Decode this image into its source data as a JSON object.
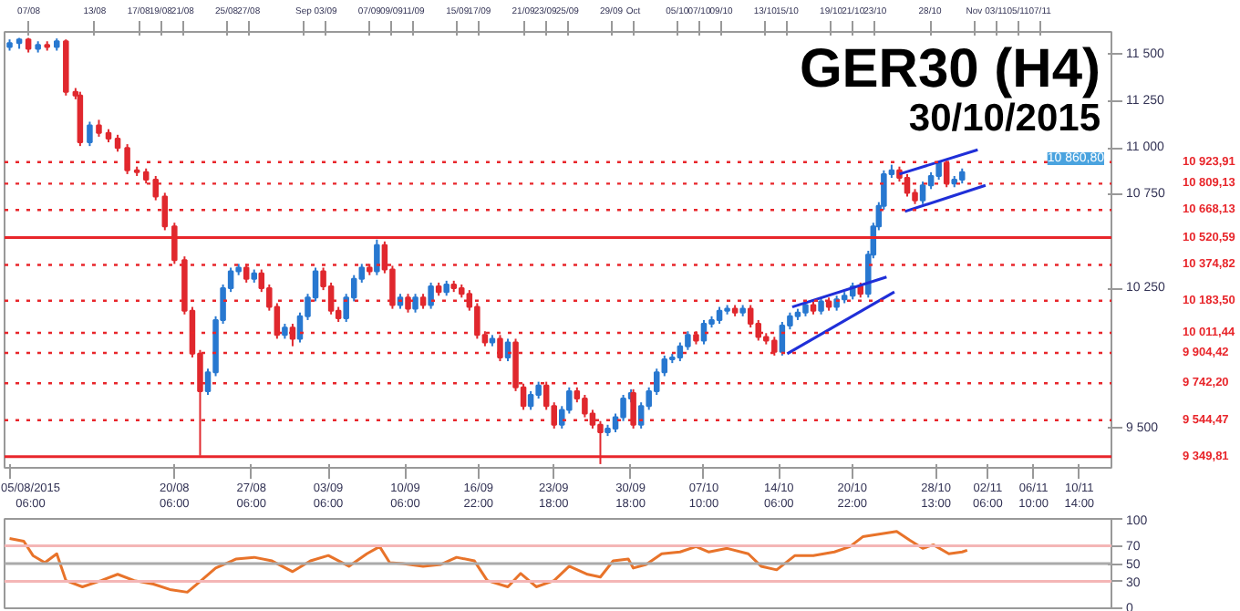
{
  "chart_data": [
    {
      "type": "candlestick",
      "title": "GER30 (H4)",
      "subtitle": "30/10/2015",
      "series": [
        {
          "type": "candlestick",
          "color": "#2878d0",
          "x": [
            "2015-08-05T06:00",
            "2015-08-06T03:00",
            "2015-08-07T20:00",
            "2015-08-09T13:00",
            "2015-08-12T13:00",
            "2015-08-23T07:00",
            "2015-08-24T00:00",
            "2015-08-24T16:00",
            "2015-08-25T09:00",
            "2015-08-26T02:00",
            "2015-08-27T12:00",
            "2015-08-30T07:00",
            "2015-08-31T16:00",
            "2015-09-01T09:00",
            "2015-09-02T02:00",
            "2015-09-04T21:00",
            "2015-09-05T14:00",
            "2015-09-06T07:00",
            "2015-09-07T16:00",
            "2015-09-09T19:00",
            "2015-09-11T04:00",
            "2015-09-12T14:00",
            "2015-09-14T00:00",
            "2015-09-18T04:00",
            "2015-09-19T14:00",
            "2015-09-21T16:00",
            "2015-09-22T09:00",
            "2015-09-24T12:00",
            "2015-09-25T04:00",
            "2015-09-28T16:00",
            "2015-09-29T09:00",
            "2015-09-30T02:00",
            "2015-09-30T19:00",
            "2015-10-01T17:00",
            "2015-10-02T10:00",
            "2015-10-03T03:00",
            "2015-10-03T20:00",
            "2015-10-04T13:00",
            "2015-10-05T06:00",
            "2015-10-05T23:00",
            "2015-10-07T10:00",
            "2015-10-08T03:00",
            "2015-10-08T20:00",
            "2015-10-09T13:00",
            "2015-10-10T23:00",
            "2015-10-14T13:00",
            "2015-10-15T06:00",
            "2015-10-15T23:00",
            "2015-10-16T16:00",
            "2015-10-18T02:00",
            "2015-10-19T12:00",
            "2015-10-20T05:00",
            "2015-10-20T23:00",
            "2015-10-22T09:00",
            "2015-10-22T20:00",
            "2015-10-23T08:00",
            "2015-10-23T19:00",
            "2015-10-24T12:00",
            "2015-10-27T08:00",
            "2015-10-28T02:00",
            "2015-10-28T19:00",
            "2015-10-30T05:00",
            "2015-10-30T22:00"
          ],
          "ohlc": [
            [
              11540,
              11580,
              11520,
              11560
            ],
            [
              11560,
              11588,
              11530,
              11580
            ],
            [
              11530,
              11570,
              11510,
              11550
            ],
            [
              11540,
              11585,
              11520,
              11570
            ],
            [
              11030,
              11140,
              11010,
              11120
            ],
            [
              9700,
              9820,
              9680,
              9800
            ],
            [
              9800,
              10100,
              9780,
              10080
            ],
            [
              10080,
              10270,
              10060,
              10250
            ],
            [
              10250,
              10360,
              10230,
              10340
            ],
            [
              10340,
              10380,
              10320,
              10360
            ],
            [
              10300,
              10350,
              10280,
              10330
            ],
            [
              10000,
              10060,
              9980,
              10040
            ],
            [
              9980,
              10120,
              9960,
              10100
            ],
            [
              10100,
              10220,
              10080,
              10200
            ],
            [
              10200,
              10360,
              10180,
              10340
            ],
            [
              10090,
              10220,
              10070,
              10200
            ],
            [
              10200,
              10320,
              10180,
              10300
            ],
            [
              10300,
              10380,
              10280,
              10360
            ],
            [
              10340,
              10510,
              10320,
              10480
            ],
            [
              10160,
              10220,
              10140,
              10200
            ],
            [
              10140,
              10220,
              10120,
              10200
            ],
            [
              10160,
              10280,
              10140,
              10260
            ],
            [
              10230,
              10290,
              10210,
              10270
            ],
            [
              9960,
              10000,
              9940,
              9980
            ],
            [
              9880,
              9980,
              9860,
              9960
            ],
            [
              9620,
              9700,
              9600,
              9680
            ],
            [
              9680,
              9750,
              9660,
              9730
            ],
            [
              9520,
              9620,
              9500,
              9600
            ],
            [
              9600,
              9720,
              9580,
              9700
            ],
            [
              9480,
              9520,
              9460,
              9500
            ],
            [
              9500,
              9580,
              9480,
              9560
            ],
            [
              9560,
              9680,
              9540,
              9660
            ],
            [
              9660,
              9710,
              9640,
              9690
            ],
            [
              9520,
              9640,
              9500,
              9620
            ],
            [
              9620,
              9720,
              9600,
              9700
            ],
            [
              9700,
              9820,
              9680,
              9800
            ],
            [
              9800,
              9890,
              9780,
              9870
            ],
            [
              9870,
              9900,
              9850,
              9880
            ],
            [
              9880,
              9960,
              9860,
              9940
            ],
            [
              9940,
              10020,
              9920,
              10000
            ],
            [
              9970,
              10080,
              9950,
              10060
            ],
            [
              10060,
              10100,
              10040,
              10080
            ],
            [
              10080,
              10150,
              10060,
              10130
            ],
            [
              10130,
              10160,
              10110,
              10140
            ],
            [
              10120,
              10160,
              10100,
              10140
            ],
            [
              9910,
              10070,
              9890,
              10050
            ],
            [
              10050,
              10120,
              10030,
              10100
            ],
            [
              10100,
              10140,
              10080,
              10120
            ],
            [
              10120,
              10180,
              10100,
              10160
            ],
            [
              10130,
              10200,
              10110,
              10180
            ],
            [
              10150,
              10210,
              10130,
              10190
            ],
            [
              10190,
              10230,
              10170,
              10210
            ],
            [
              10210,
              10280,
              10190,
              10260
            ],
            [
              10220,
              10450,
              10200,
              10430
            ],
            [
              10430,
              10600,
              10410,
              10580
            ],
            [
              10580,
              10710,
              10560,
              10690
            ],
            [
              10690,
              10880,
              10670,
              10860
            ],
            [
              10860,
              10910,
              10840,
              10880
            ],
            [
              10720,
              10820,
              10700,
              10800
            ],
            [
              10800,
              10870,
              10780,
              10850
            ],
            [
              10850,
              10925,
              10830,
              10920
            ],
            [
              10810,
              10850,
              10790,
              10830
            ],
            [
              10830,
              10890,
              10810,
              10870
            ]
          ]
        },
        {
          "type": "candlestick",
          "color": "#e0282e",
          "x": [
            "2015-08-06T23:00",
            "2015-08-08T16:00",
            "2015-08-10T09:00",
            "2015-08-11T06:00",
            "2015-08-11T16:00",
            "2015-08-13T09:00",
            "2015-08-14T06:00",
            "2015-08-15T02:00",
            "2015-08-15T23:00",
            "2015-08-16T20:00",
            "2015-08-17T16:00",
            "2015-08-18T13:00",
            "2015-08-19T09:00",
            "2015-08-20T06:00",
            "2015-08-21T04:00",
            "2015-08-21T21:00",
            "2015-08-22T14:00",
            "2015-08-26T19:00",
            "2015-08-28T04:00",
            "2015-08-28T21:00",
            "2015-08-29T14:00",
            "2015-08-31T00:00",
            "2015-09-02T19:00",
            "2015-09-03T12:00",
            "2015-09-04T04:00",
            "2015-09-07T00:00",
            "2015-09-08T09:00",
            "2015-09-09T02:00",
            "2015-09-10T12:00",
            "2015-09-11T21:00",
            "2015-09-13T07:00",
            "2015-09-14T16:00",
            "2015-09-15T09:00",
            "2015-09-16T02:00",
            "2015-09-16T19:00",
            "2015-09-17T12:00",
            "2015-09-18T21:00",
            "2015-09-20T07:00",
            "2015-09-21T00:00",
            "2015-09-23T02:00",
            "2015-09-23T19:00",
            "2015-09-25T21:00",
            "2015-09-26T14:00",
            "2015-09-27T07:00",
            "2015-09-28T00:00",
            "2015-10-01T00:00",
            "2015-10-06T17:00",
            "2015-10-10T06:00",
            "2015-10-11T16:00",
            "2015-10-12T09:00",
            "2015-10-13T02:00",
            "2015-10-13T20:00",
            "2015-10-17T09:00",
            "2015-10-18T19:00",
            "2015-10-21T16:00",
            "2015-10-25T05:00",
            "2015-10-25T22:00",
            "2015-10-26T15:00",
            "2015-10-29T12:00"
          ],
          "ohlc": [
            [
              11580,
              11588,
              11510,
              11530
            ],
            [
              11550,
              11570,
              11520,
              11540
            ],
            [
              11570,
              11580,
              11280,
              11300
            ],
            [
              11300,
              11320,
              11260,
              11280
            ],
            [
              11280,
              11300,
              11010,
              11030
            ],
            [
              11120,
              11150,
              11060,
              11080
            ],
            [
              11080,
              11100,
              11030,
              11050
            ],
            [
              11050,
              11070,
              10980,
              11000
            ],
            [
              11000,
              11020,
              10860,
              10880
            ],
            [
              10880,
              10900,
              10850,
              10870
            ],
            [
              10870,
              10890,
              10810,
              10830
            ],
            [
              10830,
              10850,
              10720,
              10740
            ],
            [
              10740,
              10760,
              10560,
              10580
            ],
            [
              10580,
              10600,
              10380,
              10400
            ],
            [
              10400,
              10420,
              10110,
              10130
            ],
            [
              10130,
              10150,
              9880,
              9900
            ],
            [
              9900,
              9920,
              9355,
              9700
            ],
            [
              10360,
              10380,
              10280,
              10300
            ],
            [
              10330,
              10350,
              10230,
              10250
            ],
            [
              10250,
              10270,
              10130,
              10150
            ],
            [
              10150,
              10170,
              9980,
              10000
            ],
            [
              10040,
              10060,
              9940,
              9980
            ],
            [
              10340,
              10360,
              10240,
              10260
            ],
            [
              10260,
              10280,
              10110,
              10130
            ],
            [
              10130,
              10150,
              10070,
              10090
            ],
            [
              10360,
              10380,
              10320,
              10340
            ],
            [
              10480,
              10500,
              10330,
              10350
            ],
            [
              10350,
              10370,
              10140,
              10160
            ],
            [
              10200,
              10220,
              10120,
              10140
            ],
            [
              10200,
              10220,
              10140,
              10160
            ],
            [
              10260,
              10280,
              10210,
              10230
            ],
            [
              10270,
              10290,
              10230,
              10250
            ],
            [
              10250,
              10270,
              10200,
              10220
            ],
            [
              10220,
              10240,
              10130,
              10150
            ],
            [
              10150,
              10170,
              9980,
              10000
            ],
            [
              10000,
              10020,
              9940,
              9960
            ],
            [
              9980,
              10000,
              9860,
              9880
            ],
            [
              9960,
              9980,
              9700,
              9720
            ],
            [
              9720,
              9740,
              9600,
              9620
            ],
            [
              9730,
              9750,
              9600,
              9620
            ],
            [
              9620,
              9640,
              9500,
              9520
            ],
            [
              9700,
              9720,
              9640,
              9660
            ],
            [
              9660,
              9680,
              9560,
              9580
            ],
            [
              9580,
              9600,
              9500,
              9520
            ],
            [
              9520,
              9540,
              9310,
              9480
            ],
            [
              9690,
              9710,
              9500,
              9520
            ],
            [
              10000,
              10020,
              9950,
              9970
            ],
            [
              10140,
              10160,
              10100,
              10120
            ],
            [
              10140,
              10160,
              10040,
              10060
            ],
            [
              10060,
              10080,
              9970,
              9990
            ],
            [
              9990,
              10010,
              9950,
              9970
            ],
            [
              9970,
              9990,
              9890,
              9910
            ],
            [
              10160,
              10180,
              10110,
              10130
            ],
            [
              10180,
              10200,
              10130,
              10150
            ],
            [
              10260,
              10280,
              10200,
              10220
            ],
            [
              10880,
              10900,
              10820,
              10840
            ],
            [
              10840,
              10860,
              10740,
              10760
            ],
            [
              10760,
              10780,
              10700,
              10720
            ],
            [
              10920,
              10930,
              10790,
              10810
            ]
          ]
        },
        {
          "type": "line",
          "color": "#1f2fd8",
          "x": [
            "2015-10-15T11:00",
            "2015-10-24T01:00"
          ],
          "values": [
            10150,
            10310
          ]
        },
        {
          "type": "line",
          "color": "#1f2fd8",
          "x": [
            "2015-10-15T00:00",
            "2015-10-24T18:00"
          ],
          "values": [
            9900,
            10230
          ]
        },
        {
          "type": "line",
          "color": "#1f2fd8",
          "x": [
            "2015-10-25T05:00",
            "2015-11-01T08:00"
          ],
          "values": [
            10860,
            10990
          ]
        },
        {
          "type": "line",
          "color": "#1f2fd8",
          "x": [
            "2015-10-25T17:00",
            "2015-11-02T01:00"
          ],
          "values": [
            10660,
            10800
          ]
        }
      ],
      "xlim": [
        "2015-08-04T19:00",
        "2015-11-13T12:00"
      ],
      "ylim": [
        9290,
        11620
      ],
      "xticks": [
        {
          "value": "2015-08-05T06:00",
          "label": "05/08/2015 06:00"
        },
        {
          "value": "2015-08-20T06:00",
          "label": "20/08 06:00"
        },
        {
          "value": "2015-08-27T06:00",
          "label": "27/08 06:00"
        },
        {
          "value": "2015-09-03T06:00",
          "label": "03/09 06:00"
        },
        {
          "value": "2015-09-10T06:00",
          "label": "10/09 06:00"
        },
        {
          "value": "2015-09-16T22:00",
          "label": "16/09 22:00"
        },
        {
          "value": "2015-09-23T18:00",
          "label": "23/09 18:00"
        },
        {
          "value": "2015-09-30T18:00",
          "label": "30/09 18:00"
        },
        {
          "value": "2015-10-07T10:00",
          "label": "07/10 10:00"
        },
        {
          "value": "2015-10-14T06:00",
          "label": "14/10 06:00"
        },
        {
          "value": "2015-10-20T22:00",
          "label": "20/10 22:00"
        },
        {
          "value": "2015-10-28T13:00",
          "label": "28/10 13:00"
        },
        {
          "value": "2015-11-02T06:00",
          "label": "02/11 06:00"
        },
        {
          "value": "2015-11-06T10:00",
          "label": "06/11 10:00"
        },
        {
          "value": "2015-11-10T14:00",
          "label": "10/11 14:00"
        }
      ],
      "x2lim": [
        "2015-08-04T19:00",
        "2015-11-13T12:00"
      ],
      "x2ticks": [
        {
          "value": "2015-08-07",
          "label": "07/08"
        },
        {
          "value": "2015-08-13",
          "label": "13/08"
        },
        {
          "value": "2015-08-17",
          "label": "17/08"
        },
        {
          "value": "2015-08-19",
          "label": "19/08"
        },
        {
          "value": "2015-08-21",
          "label": "21/08"
        },
        {
          "value": "2015-08-25",
          "label": "25/08"
        },
        {
          "value": "2015-08-27",
          "label": "27/08"
        },
        {
          "value": "2015-09-01",
          "label": "Sep"
        },
        {
          "value": "2015-09-03",
          "label": "03/09"
        },
        {
          "value": "2015-09-07",
          "label": "07/09"
        },
        {
          "value": "2015-09-09",
          "label": "09/09"
        },
        {
          "value": "2015-09-11",
          "label": "11/09"
        },
        {
          "value": "2015-09-15",
          "label": "15/09"
        },
        {
          "value": "2015-09-17",
          "label": "17/09"
        },
        {
          "value": "2015-09-21",
          "label": "21/09"
        },
        {
          "value": "2015-09-23",
          "label": "23/09"
        },
        {
          "value": "2015-09-25",
          "label": "25/09"
        },
        {
          "value": "2015-09-29",
          "label": "29/09"
        },
        {
          "value": "2015-10-01",
          "label": "Oct"
        },
        {
          "value": "2015-10-05",
          "label": "05/10"
        },
        {
          "value": "2015-10-07",
          "label": "07/10"
        },
        {
          "value": "2015-10-09",
          "label": "09/10"
        },
        {
          "value": "2015-10-13",
          "label": "13/10"
        },
        {
          "value": "2015-10-15",
          "label": "15/10"
        },
        {
          "value": "2015-10-19",
          "label": "19/10"
        },
        {
          "value": "2015-10-21",
          "label": "21/10"
        },
        {
          "value": "2015-10-23",
          "label": "23/10"
        },
        {
          "value": "2015-10-28",
          "label": "28/10"
        },
        {
          "value": "2015-11-01",
          "label": "Nov"
        },
        {
          "value": "2015-11-03",
          "label": "03/11"
        },
        {
          "value": "2015-11-05",
          "label": "05/11"
        },
        {
          "value": "2015-11-07",
          "label": "07/11"
        }
      ],
      "yticks": [
        {
          "value": 11500,
          "label": "11 500"
        },
        {
          "value": 11250,
          "label": "11 250"
        },
        {
          "value": 11000,
          "label": "11 000"
        },
        {
          "value": 10750,
          "label": "10 750"
        },
        {
          "value": 10250,
          "label": "10 250"
        },
        {
          "value": 9500,
          "label": "9 500"
        }
      ],
      "ref_lines": [
        {
          "axis": "y",
          "value": 10923.91,
          "label": "10 923,91",
          "color": "#e8262b",
          "line_style": "dotted"
        },
        {
          "axis": "y",
          "value": 10809.13,
          "label": "10 809,13",
          "color": "#e8262b",
          "line_style": "dotted"
        },
        {
          "axis": "y",
          "value": 10668.13,
          "label": "10 668,13",
          "color": "#e8262b",
          "line_style": "dotted"
        },
        {
          "axis": "y",
          "value": 10520.59,
          "label": "10 520,59",
          "color": "#e8262b",
          "line_style": "solid"
        },
        {
          "axis": "y",
          "value": 10374.82,
          "label": "10 374,82",
          "color": "#e8262b",
          "line_style": "dotted"
        },
        {
          "axis": "y",
          "value": 10183.5,
          "label": "10 183,50",
          "color": "#e8262b",
          "line_style": "dotted"
        },
        {
          "axis": "y",
          "value": 10011.44,
          "label": "10 011,44",
          "color": "#e8262b",
          "line_style": "dotted"
        },
        {
          "axis": "y",
          "value": 9904.42,
          "label": "9 904,42",
          "color": "#e8262b",
          "line_style": "dotted"
        },
        {
          "axis": "y",
          "value": 9742.2,
          "label": "9 742,20",
          "color": "#e8262b",
          "line_style": "dotted"
        },
        {
          "axis": "y",
          "value": 9544.47,
          "label": "9 544,47",
          "color": "#e8262b",
          "line_style": "dotted"
        },
        {
          "axis": "y",
          "value": 9349.81,
          "label": "9 349,81",
          "color": "#e8262b",
          "line_style": "solid"
        }
      ],
      "annotations": [
        "10 860,80"
      ]
    },
    {
      "type": "line",
      "tick_labels": "y",
      "xlim": [
        "2015-08-04T19:00",
        "2015-11-13T12:00"
      ],
      "ylim": [
        0,
        100
      ],
      "yticks": [
        100,
        70,
        50,
        30,
        0
      ],
      "series": [
        {
          "color": "#e8732a",
          "x": [
            "2015-08-05T06:00",
            "2015-08-06T13:00",
            "2015-08-07T09:00",
            "2015-08-08T11:00",
            "2015-08-09T13:00",
            "2015-08-10T09:00",
            "2015-08-11T21:00",
            "2015-08-13T14:00",
            "2015-08-15T02:00",
            "2015-08-16T14:00",
            "2015-08-18T08:00",
            "2015-08-19T20:00",
            "2015-08-21T10:00",
            "2015-08-22T14:00",
            "2015-08-24T00:00",
            "2015-08-25T20:00",
            "2015-08-27T12:00",
            "2015-08-29T03:00",
            "2015-08-31T00:00",
            "2015-09-01T15:00",
            "2015-09-03T06:00",
            "2015-09-05T03:00",
            "2015-09-06T18:00",
            "2015-09-07T22:00",
            "2015-09-08T20:00",
            "2015-09-10T00:00",
            "2015-09-11T21:00",
            "2015-09-13T12:00",
            "2015-09-14T22:00",
            "2015-09-16T13:00",
            "2015-09-17T17:00",
            "2015-09-19T14:00",
            "2015-09-20T18:00",
            "2015-09-22T04:00",
            "2015-09-23T19:00",
            "2015-09-25T04:00",
            "2015-09-26T20:00",
            "2015-09-28T00:00",
            "2015-09-29T04:00",
            "2015-09-30T13:00",
            "2015-10-01T00:00",
            "2015-10-02T04:00",
            "2015-10-03T14:00",
            "2015-10-05T06:00",
            "2015-10-06T17:00",
            "2015-10-07T21:00",
            "2015-10-09T13:00",
            "2015-10-11T11:00",
            "2015-10-12T15:00",
            "2015-10-14T01:00",
            "2015-10-15T17:00",
            "2015-10-17T09:00",
            "2015-10-19T07:00",
            "2015-10-20T17:00",
            "2015-10-21T21:00",
            "2015-10-24T23:00",
            "2015-10-26T04:00",
            "2015-10-27T08:00",
            "2015-10-28T07:00",
            "2015-10-29T17:00",
            "2015-10-30T22:00",
            "2015-10-31T09:00"
          ],
          "values": [
            78,
            75,
            59,
            51,
            61,
            31,
            24,
            31,
            38,
            31,
            27,
            21,
            18,
            30,
            45,
            55,
            57,
            53,
            41,
            53,
            59,
            47,
            61,
            69,
            51,
            50,
            47,
            49,
            57,
            53,
            31,
            24,
            39,
            24,
            31,
            47,
            38,
            35,
            53,
            55,
            45,
            49,
            61,
            63,
            69,
            63,
            67,
            61,
            47,
            43,
            59,
            59,
            63,
            69,
            80,
            86,
            76,
            67,
            71,
            61,
            63,
            65
          ]
        }
      ],
      "ref_lines": [
        {
          "axis": "y",
          "value": 70,
          "color": "#f4b6b6",
          "line_style": "solid"
        },
        {
          "axis": "y",
          "value": 50,
          "color": "#aaaaaa",
          "line_style": "solid"
        },
        {
          "axis": "y",
          "value": 30,
          "color": "#f4b6b6",
          "line_style": "solid"
        }
      ]
    }
  ]
}
